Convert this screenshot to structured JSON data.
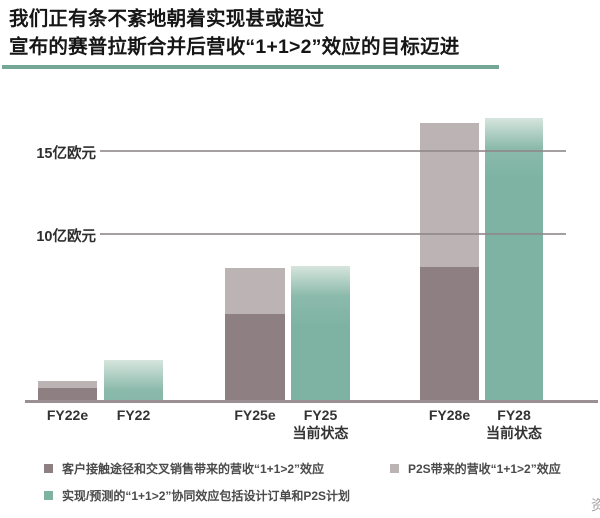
{
  "title": {
    "line1": "我们正有条不紊地朝着实现甚或超过",
    "line2": "宣布的赛普拉斯合并后营收“1+1>2”效应的目标迈进"
  },
  "chart_data": {
    "type": "bar",
    "subtype": "stacked-grouped",
    "unit": "亿欧元",
    "y_axis": {
      "gridline_values": [
        10,
        15
      ],
      "tick_labels": [
        "10亿欧元",
        "15亿欧元"
      ],
      "ylim": [
        0,
        18
      ],
      "grid": true
    },
    "categories": [
      "FY22e",
      "FY22",
      "FY25e",
      "FY25\n当前状态",
      "FY28e",
      "FY28\n当前状态"
    ],
    "series": [
      {
        "name": "客户接触途径和交叉销售带来的营收“1+1>2”效应",
        "color": "#8e7f83",
        "values": [
          0.7,
          0,
          5.2,
          0,
          8.0,
          0
        ]
      },
      {
        "name": "P2S带来的营收“1+1>2”效应",
        "color": "#bcb3b5",
        "values": [
          0.4,
          0,
          2.8,
          0,
          8.7,
          0
        ]
      },
      {
        "name": "实现/预测的“1+1>2”协同效应包括设计订单和P2S计划",
        "color": "#7eb3a3",
        "gradient_top": "#d6e5de",
        "values": [
          0,
          2.4,
          0,
          8.1,
          0,
          17.0
        ]
      }
    ],
    "legend_position": "bottom"
  },
  "colors": {
    "title_underline": "#74a796",
    "axis_line": "#9a8f92",
    "gridline": "#8f8789"
  },
  "footer": {
    "source_partial": "资"
  }
}
